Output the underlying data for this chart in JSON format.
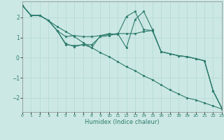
{
  "title": "",
  "xlabel": "Humidex (Indice chaleur)",
  "background_color": "#cce8e4",
  "grid_color": "#b0d8d4",
  "line_color": "#2e7d6e",
  "xlim": [
    0,
    23
  ],
  "ylim": [
    -2.7,
    2.8
  ],
  "xticks": [
    0,
    1,
    2,
    3,
    4,
    5,
    6,
    7,
    8,
    9,
    10,
    11,
    12,
    13,
    14,
    15,
    16,
    17,
    18,
    19,
    20,
    21,
    22,
    23
  ],
  "yticks": [
    -2,
    -1,
    0,
    1,
    2
  ],
  "line1_x": [
    0,
    1,
    2,
    3,
    4,
    5,
    6,
    7,
    8,
    9,
    10,
    11,
    12,
    13,
    14,
    15,
    16,
    17,
    18,
    19,
    20,
    21,
    22,
    23
  ],
  "line1_y": [
    2.6,
    2.1,
    2.1,
    1.85,
    1.55,
    1.3,
    1.05,
    0.75,
    0.5,
    0.25,
    0.05,
    -0.2,
    -0.45,
    -0.65,
    -0.9,
    -1.1,
    -1.35,
    -1.6,
    -1.8,
    -2.0,
    -2.1,
    -2.25,
    -2.4,
    -2.55
  ],
  "line2_x": [
    0,
    1,
    2,
    3,
    4,
    5,
    6,
    7,
    8,
    9,
    10,
    11,
    12,
    13,
    14,
    15,
    16,
    17,
    18,
    19,
    20,
    21,
    22,
    23
  ],
  "line2_y": [
    2.6,
    2.1,
    2.1,
    1.85,
    1.35,
    1.05,
    1.1,
    1.05,
    1.05,
    1.1,
    1.15,
    1.2,
    1.2,
    1.2,
    1.3,
    1.35,
    0.3,
    0.2,
    0.1,
    0.05,
    -0.05,
    -0.15,
    -1.65,
    -2.5
  ],
  "line3_x": [
    0,
    1,
    2,
    3,
    4,
    5,
    6,
    7,
    8,
    9,
    10,
    11,
    12,
    13,
    14,
    15,
    16,
    17,
    18,
    19,
    20,
    21,
    22,
    23
  ],
  "line3_y": [
    2.6,
    2.1,
    2.1,
    1.85,
    1.35,
    0.65,
    0.6,
    0.65,
    0.65,
    1.05,
    1.1,
    1.2,
    0.5,
    1.9,
    2.3,
    1.4,
    0.3,
    0.2,
    0.1,
    0.05,
    -0.05,
    -0.15,
    -1.65,
    -2.5
  ],
  "line4_x": [
    0,
    1,
    2,
    3,
    4,
    5,
    6,
    7,
    8,
    9,
    10,
    11,
    12,
    13,
    14,
    15,
    16,
    17,
    18,
    19,
    20,
    21,
    22,
    23
  ],
  "line4_y": [
    2.6,
    2.1,
    2.1,
    1.85,
    1.35,
    0.7,
    0.55,
    0.65,
    0.5,
    1.1,
    1.2,
    1.15,
    2.05,
    2.3,
    1.4,
    1.35,
    0.3,
    0.2,
    0.1,
    0.05,
    -0.05,
    -0.15,
    -1.65,
    -2.5
  ]
}
